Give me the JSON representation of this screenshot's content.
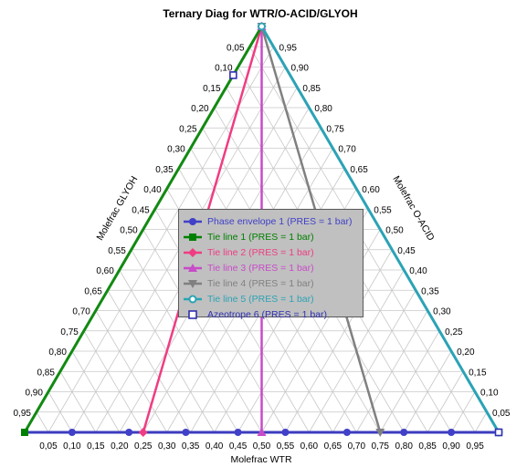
{
  "chart_data": {
    "type": "ternary",
    "title": "Ternary Diag for WTR/O-ACID/GLYOH",
    "axes": {
      "bottom": "Molefrac WTR",
      "right": "Molefrac O-ACID",
      "left": "Molefrac GLYOH"
    },
    "ticks": [
      "0,05",
      "0,10",
      "0,15",
      "0,20",
      "0,25",
      "0,30",
      "0,35",
      "0,40",
      "0,45",
      "0,50",
      "0,55",
      "0,60",
      "0,65",
      "0,70",
      "0,75",
      "0,80",
      "0,85",
      "0,90",
      "0,95"
    ],
    "series": [
      {
        "name": "Phase envelope 1 (PRES = 1  bar)",
        "color": "#4040c8",
        "marker": "circle",
        "points": [
          [
            1.0,
            0,
            0
          ],
          [
            0.9,
            0.1,
            0
          ],
          [
            0.8,
            0.2,
            0
          ],
          [
            0.68,
            0.32,
            0
          ],
          [
            0.55,
            0.45,
            0
          ],
          [
            0.45,
            0.55,
            0
          ],
          [
            0.34,
            0.66,
            0
          ],
          [
            0.22,
            0.78,
            0
          ],
          [
            0.1,
            0.9,
            0
          ],
          [
            0,
            1.0,
            0
          ]
        ]
      },
      {
        "name": "Tie line 1 (PRES = 1  bar)",
        "color": "#008000",
        "marker": "square",
        "points": [
          [
            0,
            1,
            0
          ],
          [
            0,
            0,
            1
          ]
        ]
      },
      {
        "name": "Tie line 2 (PRES = 1  bar)",
        "color": "#f03c82",
        "marker": "diamond",
        "points": [
          [
            0.25,
            0.75,
            0
          ],
          [
            0,
            0,
            1
          ]
        ]
      },
      {
        "name": "Tie line 3 (PRES = 1  bar)",
        "color": "#c84bc8",
        "marker": "triangle",
        "points": [
          [
            0.5,
            0.5,
            0
          ],
          [
            0,
            0,
            1
          ]
        ]
      },
      {
        "name": "Tie line 4 (PRES = 1  bar)",
        "color": "#808080",
        "marker": "triangle-down",
        "points": [
          [
            0.75,
            0.25,
            0
          ],
          [
            0,
            0,
            1
          ]
        ]
      },
      {
        "name": "Tie line 5 (PRES = 1  bar)",
        "color": "#2ba3b5",
        "marker": "circle-open",
        "points": [
          [
            1,
            0,
            0
          ],
          [
            0,
            0,
            1
          ]
        ]
      },
      {
        "name": "Azeotrope 6 (PRES = 1  bar)",
        "color": "#3030b0",
        "marker": "square-open",
        "points": [
          [
            0,
            0.12,
            0.88
          ],
          [
            1,
            0,
            0
          ]
        ]
      }
    ],
    "grid": true,
    "legend": "center"
  }
}
